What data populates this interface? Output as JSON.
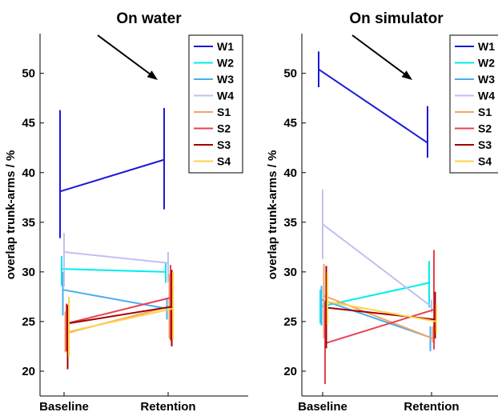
{
  "chart_data": [
    {
      "type": "line",
      "title": "On water",
      "ylabel": "overlap trunk-arms / %",
      "xlabel": "",
      "categories": [
        "Baseline",
        "Retention"
      ],
      "ylim": [
        17.5,
        54
      ],
      "yticks": [
        20,
        25,
        30,
        35,
        40,
        45,
        50
      ],
      "legend_position": "top-right",
      "annotation": "arrow pointing down-right",
      "series": [
        {
          "name": "W1",
          "color": "#1a1ad6",
          "values": [
            38.1,
            41.3
          ],
          "err_low": [
            33.4,
            36.3
          ],
          "err_high": [
            46.3,
            46.5
          ]
        },
        {
          "name": "W2",
          "color": "#00eded",
          "values": [
            30.3,
            30.0
          ],
          "err_low": [
            28.6,
            28.9
          ],
          "err_high": [
            31.6,
            31.0
          ]
        },
        {
          "name": "W3",
          "color": "#4aaeef",
          "values": [
            28.2,
            26.3
          ],
          "err_low": [
            25.6,
            25.2
          ],
          "err_high": [
            30.0,
            27.4
          ]
        },
        {
          "name": "W4",
          "color": "#c0c0f2",
          "values": [
            32.0,
            30.9
          ],
          "err_low": [
            28.5,
            29.0
          ],
          "err_high": [
            33.9,
            32.0
          ]
        },
        {
          "name": "S1",
          "color": "#f2a46a",
          "values": [
            23.8,
            26.5
          ],
          "err_low": [
            21.9,
            23.3
          ],
          "err_high": [
            26.0,
            29.8
          ]
        },
        {
          "name": "S2",
          "color": "#e8404f",
          "values": [
            24.8,
            27.4
          ],
          "err_low": [
            22.0,
            23.1
          ],
          "err_high": [
            26.8,
            30.7
          ]
        },
        {
          "name": "S3",
          "color": "#a00000",
          "values": [
            24.8,
            26.5
          ],
          "err_low": [
            20.2,
            22.5
          ],
          "err_high": [
            26.7,
            30.2
          ]
        },
        {
          "name": "S4",
          "color": "#ffd24a",
          "values": [
            24.0,
            26.3
          ],
          "err_low": [
            21.4,
            23.2
          ],
          "err_high": [
            27.5,
            30.0
          ]
        }
      ]
    },
    {
      "type": "line",
      "title": "On simulator",
      "ylabel": "overlap trunk-arms / %",
      "xlabel": "",
      "categories": [
        "Baseline",
        "Retention"
      ],
      "ylim": [
        17.5,
        54
      ],
      "yticks": [
        20,
        25,
        30,
        35,
        40,
        45,
        50
      ],
      "legend_position": "top-right",
      "annotation": "arrow pointing down-right",
      "series": [
        {
          "name": "W1",
          "color": "#1a1ad6",
          "values": [
            50.4,
            43.0
          ],
          "err_low": [
            48.6,
            41.5
          ],
          "err_high": [
            52.2,
            46.7
          ]
        },
        {
          "name": "W2",
          "color": "#00eded",
          "values": [
            26.5,
            28.9
          ],
          "err_low": [
            24.8,
            26.4
          ],
          "err_high": [
            28.2,
            31.1
          ]
        },
        {
          "name": "W3",
          "color": "#4aaeef",
          "values": [
            27.2,
            23.4
          ],
          "err_low": [
            24.6,
            22.0
          ],
          "err_high": [
            28.6,
            24.5
          ]
        },
        {
          "name": "W4",
          "color": "#c0c0f2",
          "values": [
            34.8,
            26.5
          ],
          "err_low": [
            31.3,
            25.9
          ],
          "err_high": [
            38.3,
            27.2
          ]
        },
        {
          "name": "S1",
          "color": "#f2a46a",
          "values": [
            27.6,
            23.3
          ],
          "err_low": [
            23.3,
            22.9
          ],
          "err_high": [
            30.8,
            24.5
          ]
        },
        {
          "name": "S2",
          "color": "#e8404f",
          "values": [
            22.8,
            26.2
          ],
          "err_low": [
            18.7,
            22.2
          ],
          "err_high": [
            27.0,
            32.2
          ]
        },
        {
          "name": "S3",
          "color": "#a00000",
          "values": [
            26.4,
            25.2
          ],
          "err_low": [
            22.3,
            23.3
          ],
          "err_high": [
            30.6,
            28.0
          ]
        },
        {
          "name": "S4",
          "color": "#ffd24a",
          "values": [
            27.0,
            25.0
          ],
          "err_low": [
            24.7,
            23.8
          ],
          "err_high": [
            29.9,
            26.7
          ]
        }
      ]
    }
  ]
}
